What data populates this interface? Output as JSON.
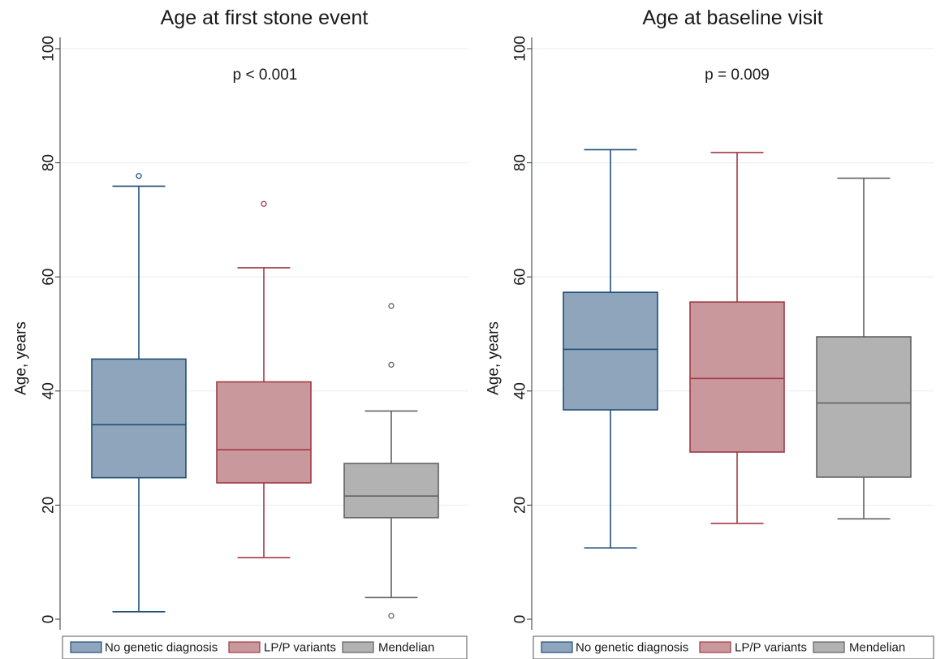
{
  "colors": {
    "grid": "#e4eef3",
    "axis": "#333333",
    "groups": [
      {
        "fill": "#8ea5bb",
        "stroke": "#1f4e79"
      },
      {
        "fill": "#c9989c",
        "stroke": "#a23a44"
      },
      {
        "fill": "#b2b2b2",
        "stroke": "#616161"
      }
    ]
  },
  "chart_data": [
    {
      "type": "box",
      "title": "Age at first stone event",
      "annotation": "p < 0.001",
      "ylabel": "Age, years",
      "ylim": [
        0,
        100
      ],
      "yticks": [
        0,
        20,
        40,
        60,
        80,
        100
      ],
      "grid": true,
      "categories": [
        "No genetic diagnosis",
        "LP/P variants",
        "Mendelian"
      ],
      "boxes": [
        {
          "name": "No genetic diagnosis",
          "whisker_low": 1.3,
          "q1": 24.8,
          "median": 34.1,
          "q3": 45.6,
          "whisker_high": 75.9,
          "outliers": [
            77.7
          ]
        },
        {
          "name": "LP/P variants",
          "whisker_low": 10.8,
          "q1": 23.9,
          "median": 29.7,
          "q3": 41.6,
          "whisker_high": 61.6,
          "outliers": [
            72.8
          ]
        },
        {
          "name": "Mendelian",
          "whisker_low": 3.8,
          "q1": 17.8,
          "median": 21.6,
          "q3": 27.3,
          "whisker_high": 36.5,
          "outliers": [
            0.6,
            44.6,
            54.9
          ]
        }
      ],
      "legend": {
        "position": "bottom",
        "items": [
          "No genetic diagnosis",
          "LP/P variants",
          "Mendelian"
        ]
      }
    },
    {
      "type": "box",
      "title": "Age at baseline visit",
      "annotation": "p = 0.009",
      "ylabel": "Age, years",
      "ylim": [
        0,
        100
      ],
      "yticks": [
        0,
        20,
        40,
        60,
        80,
        100
      ],
      "grid": true,
      "categories": [
        "No genetic diagnosis",
        "LP/P variants",
        "Mendelian"
      ],
      "boxes": [
        {
          "name": "No genetic diagnosis",
          "whisker_low": 12.5,
          "q1": 36.7,
          "median": 47.3,
          "q3": 57.3,
          "whisker_high": 82.3,
          "outliers": []
        },
        {
          "name": "LP/P variants",
          "whisker_low": 16.8,
          "q1": 29.3,
          "median": 42.2,
          "q3": 55.6,
          "whisker_high": 81.8,
          "outliers": []
        },
        {
          "name": "Mendelian",
          "whisker_low": 17.6,
          "q1": 24.9,
          "median": 37.9,
          "q3": 49.5,
          "whisker_high": 77.3,
          "outliers": []
        }
      ],
      "legend": {
        "position": "bottom",
        "items": [
          "No genetic diagnosis",
          "LP/P variants",
          "Mendelian"
        ]
      }
    }
  ]
}
